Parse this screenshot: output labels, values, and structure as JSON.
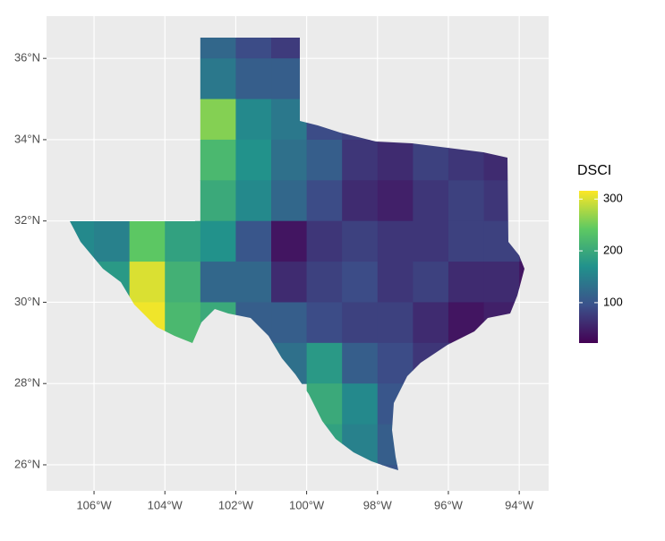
{
  "chart_data": {
    "type": "choropleth",
    "legend_title": "DSCI",
    "lon": [
      -106.5,
      -105.5,
      -104.5,
      -103.5,
      -102.5,
      -101.5,
      -100.5,
      -99.5,
      -98.5,
      -97.5,
      -96.5,
      -95.5,
      -94.5,
      -93.5
    ],
    "lat": [
      36.5,
      35.5,
      34.5,
      33.5,
      32.5,
      31.5,
      30.5,
      29.5,
      28.5,
      27.5,
      26.5,
      25.5
    ],
    "values": [
      [
        null,
        null,
        null,
        null,
        120,
        90,
        75,
        null,
        null,
        null,
        null,
        null,
        null,
        null
      ],
      [
        null,
        null,
        null,
        null,
        140,
        110,
        110,
        null,
        null,
        null,
        null,
        null,
        null,
        null
      ],
      [
        null,
        null,
        null,
        null,
        260,
        160,
        140,
        90,
        80,
        70,
        60,
        70,
        60,
        null
      ],
      [
        null,
        null,
        null,
        null,
        220,
        170,
        130,
        110,
        70,
        60,
        80,
        70,
        60,
        60
      ],
      [
        null,
        null,
        null,
        null,
        200,
        160,
        120,
        90,
        60,
        50,
        70,
        80,
        70,
        80
      ],
      [
        160,
        150,
        240,
        190,
        170,
        100,
        40,
        70,
        80,
        70,
        70,
        80,
        80,
        60
      ],
      [
        null,
        180,
        300,
        210,
        120,
        120,
        60,
        80,
        90,
        70,
        80,
        60,
        60,
        40
      ],
      [
        null,
        null,
        310,
        220,
        200,
        110,
        110,
        90,
        80,
        80,
        60,
        40,
        50,
        null
      ],
      [
        null,
        null,
        null,
        null,
        null,
        null,
        130,
        180,
        110,
        90,
        70,
        80,
        null,
        null
      ],
      [
        null,
        null,
        null,
        null,
        null,
        null,
        null,
        200,
        160,
        100,
        100,
        null,
        null,
        null
      ],
      [
        null,
        null,
        null,
        null,
        null,
        null,
        null,
        190,
        150,
        110,
        null,
        null,
        null,
        null
      ],
      [
        null,
        null,
        null,
        null,
        null,
        null,
        null,
        null,
        null,
        100,
        null,
        null,
        null,
        null
      ]
    ],
    "xlim": [
      -107.34,
      -93.17
    ],
    "ylim": [
      25.36,
      37.04
    ],
    "xticks": [
      {
        "value": -106,
        "label": "106°W"
      },
      {
        "value": -104,
        "label": "104°W"
      },
      {
        "value": -102,
        "label": "102°W"
      },
      {
        "value": -100,
        "label": "100°W"
      },
      {
        "value": -98,
        "label": "98°W"
      },
      {
        "value": -96,
        "label": "96°W"
      },
      {
        "value": -94,
        "label": "94°W"
      }
    ],
    "yticks": [
      {
        "value": 26,
        "label": "26°N"
      },
      {
        "value": 28,
        "label": "28°N"
      },
      {
        "value": 30,
        "label": "30°N"
      },
      {
        "value": 32,
        "label": "32°N"
      },
      {
        "value": 34,
        "label": "34°N"
      },
      {
        "value": 36,
        "label": "36°N"
      }
    ],
    "clim": [
      22,
      316
    ],
    "cticks": [
      100,
      200,
      300
    ],
    "colorscale": [
      "#440154",
      "#3b528b",
      "#21918c",
      "#5ec962",
      "#fde725"
    ],
    "grid": true
  }
}
